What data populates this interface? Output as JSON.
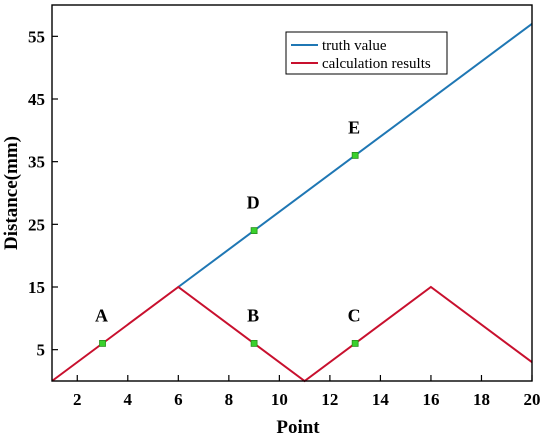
{
  "chart_data": {
    "type": "line",
    "title": "",
    "xlabel": "Point",
    "ylabel": "Distance(mm)",
    "xlim": [
      1,
      20
    ],
    "ylim": [
      0,
      60
    ],
    "xticks": [
      2,
      4,
      6,
      8,
      10,
      12,
      14,
      16,
      18,
      20
    ],
    "yticks": [
      5,
      15,
      25,
      35,
      45,
      55
    ],
    "grid": false,
    "legend_position": "top-right",
    "series": [
      {
        "name": "truth value",
        "color": "#1f77b4",
        "x": [
          6,
          20
        ],
        "y": [
          15,
          57
        ]
      },
      {
        "name": "calculation results",
        "color": "#c8102e",
        "x": [
          1,
          6,
          11,
          16,
          20
        ],
        "y": [
          0,
          15,
          0,
          15,
          3
        ]
      }
    ],
    "markers": [
      {
        "label": "A",
        "x": 3,
        "y": 6
      },
      {
        "label": "B",
        "x": 9,
        "y": 6
      },
      {
        "label": "C",
        "x": 13,
        "y": 6
      },
      {
        "label": "D",
        "x": 9,
        "y": 24
      },
      {
        "label": "E",
        "x": 13,
        "y": 36
      }
    ],
    "marker_color": "#39d12c"
  }
}
